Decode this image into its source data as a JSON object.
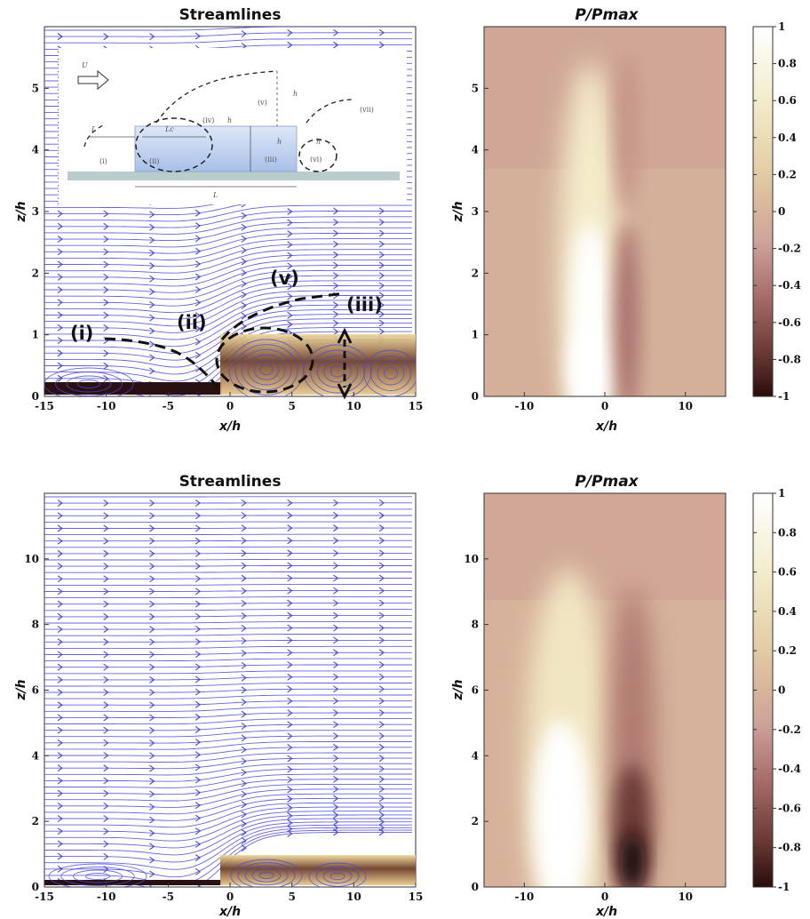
{
  "chart_data": [
    {
      "type": "streamline",
      "title": "Streamlines",
      "xlabel": "x/h",
      "ylabel": "z/h",
      "xlim": [
        -15,
        15
      ],
      "ylim": [
        0,
        6
      ],
      "xticks": [
        "-15",
        "-10",
        "-5",
        "0",
        "5",
        "10",
        "15"
      ],
      "yticks": [
        "0",
        "1",
        "2",
        "3",
        "4",
        "5"
      ],
      "step_at_x": 0,
      "step_height": 0.85,
      "annotations": [
        "(i)",
        "(ii)",
        "(v)",
        "(iii)"
      ],
      "inset_labels": [
        "U",
        "L",
        "Lc",
        "h",
        "h",
        "h",
        "h",
        "L",
        "(i)",
        "(ii)",
        "(iii)",
        "(iv)",
        "(v)",
        "(vi)",
        "(vii)"
      ]
    },
    {
      "type": "heatmap",
      "title": "P/Pmax",
      "xlabel": "x/h",
      "ylabel": "z/h",
      "xlim": [
        -15,
        15
      ],
      "ylim": [
        0,
        6
      ],
      "xticks": [
        "-10",
        "0",
        "10"
      ],
      "yticks": [
        "0",
        "1",
        "2",
        "3",
        "4",
        "5"
      ],
      "colorbar_ticks": [
        "1",
        "0.8",
        "0.6",
        "0.4",
        "0.2",
        "0",
        "-0.2",
        "-0.4",
        "-0.6",
        "-0.8",
        "-1"
      ],
      "colormap": [
        "#2a0c0c",
        "#6b3a36",
        "#a9706c",
        "#cfa49a",
        "#d8b49a",
        "#e4cfa6",
        "#f3eccb",
        "#ffffff"
      ],
      "features": [
        {
          "x_center": -2.5,
          "z_peak": 0.8,
          "value": 1.0
        },
        {
          "x_center": 2.5,
          "z_peak": 1.5,
          "value": -0.35
        }
      ]
    },
    {
      "type": "streamline",
      "title": "Streamlines",
      "xlabel": "x/h",
      "ylabel": "z/h",
      "xlim": [
        -15,
        15
      ],
      "ylim": [
        0,
        12
      ],
      "xticks": [
        "-15",
        "-10",
        "-5",
        "0",
        "5",
        "10",
        "15"
      ],
      "yticks": [
        "0",
        "2",
        "4",
        "6",
        "8",
        "10"
      ],
      "step_at_x": 0,
      "step_height": 0.85
    },
    {
      "type": "heatmap",
      "title": "P/Pmax",
      "xlabel": "x/h",
      "ylabel": "z/h",
      "xlim": [
        -15,
        15
      ],
      "ylim": [
        0,
        12
      ],
      "xticks": [
        "-10",
        "0",
        "10"
      ],
      "yticks": [
        "0",
        "2",
        "4",
        "6",
        "8",
        "10"
      ],
      "colorbar_ticks": [
        "1",
        "0.8",
        "0.6",
        "0.4",
        "0.2",
        "0",
        "-0.2",
        "-0.4",
        "-0.6",
        "-0.8",
        "-1"
      ],
      "colormap": [
        "#2a0c0c",
        "#6b3a36",
        "#a9706c",
        "#cfa49a",
        "#d8b49a",
        "#e4cfa6",
        "#f3eccb",
        "#ffffff"
      ],
      "features": [
        {
          "x_center": -5,
          "z_peak": 1.5,
          "value": 1.0
        },
        {
          "x_center": 3.5,
          "z_peak": 0.6,
          "value": -1.0
        }
      ]
    }
  ],
  "colors": {
    "streamline": "#4a4ad8",
    "ground_band_dark": "#2a1010",
    "ground_band_light": "#e8c88a",
    "inset_box": "#c8d8f0",
    "inset_ground": "#b8c8c8"
  }
}
